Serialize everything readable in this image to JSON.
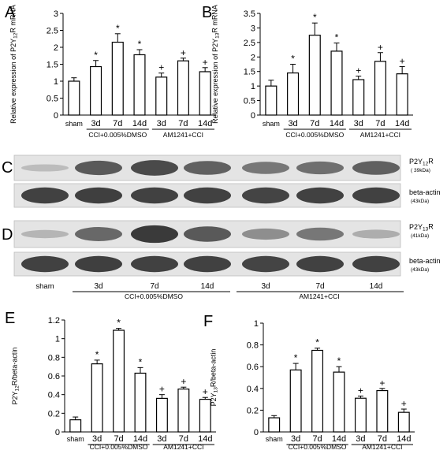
{
  "panels": [
    {
      "letter": "A",
      "ylabel": "Relative expression of P2Y12R mRNA",
      "ticks": [
        "0",
        "0.5",
        "1",
        "1.5",
        "2",
        "2.5",
        "3"
      ],
      "ymax": 3,
      "categories": [
        "sham",
        "3d",
        "7d",
        "14d",
        "3d",
        "7d",
        "14d"
      ],
      "values": [
        1.0,
        1.43,
        2.15,
        1.78,
        1.12,
        1.6,
        1.28
      ],
      "errors": [
        0.1,
        0.18,
        0.25,
        0.15,
        0.12,
        0.08,
        0.12
      ],
      "marks": [
        "",
        "*",
        "*",
        "*",
        "+",
        "+",
        "+"
      ],
      "groups": [
        "CCI+0.005%DMSO",
        "AM1241+CCI"
      ]
    },
    {
      "letter": "B",
      "ylabel": "Relative expression of P2Y13R mRNA",
      "ticks": [
        "0",
        "0.5",
        "1",
        "1.5",
        "2",
        "2.5",
        "3",
        "3.5"
      ],
      "ymax": 3.5,
      "categories": [
        "sham",
        "3d",
        "7d",
        "14d",
        "3d",
        "7d",
        "14d"
      ],
      "values": [
        1.0,
        1.45,
        2.75,
        2.2,
        1.22,
        1.85,
        1.42
      ],
      "errors": [
        0.2,
        0.3,
        0.42,
        0.28,
        0.12,
        0.3,
        0.25
      ],
      "marks": [
        "",
        "*",
        "*",
        "*",
        "+",
        "+",
        "+"
      ],
      "groups": [
        "CCI+0.005%DMSO",
        "AM1241+CCI"
      ]
    },
    {
      "letter": "E",
      "ylabel": "P2Y12R/beta-actin",
      "ticks": [
        "0",
        "0.2",
        "0.4",
        "0.6",
        "0.8",
        "1",
        "1.2"
      ],
      "ymax": 1.2,
      "categories": [
        "sham",
        "3d",
        "7d",
        "14d",
        "3d",
        "7d",
        "14d"
      ],
      "values": [
        0.13,
        0.73,
        1.09,
        0.63,
        0.36,
        0.46,
        0.35
      ],
      "errors": [
        0.03,
        0.04,
        0.02,
        0.06,
        0.04,
        0.02,
        0.02
      ],
      "marks": [
        "",
        "*",
        "*",
        "*",
        "+",
        "+",
        "+"
      ],
      "groups": [
        "CCI+0.005%DMSO",
        "AM1241+CCI"
      ]
    },
    {
      "letter": "F",
      "ylabel": "P2Y13R/beta-actin",
      "ticks": [
        "0",
        "0.2",
        "0.4",
        "0.6",
        "0.8",
        "1"
      ],
      "ymax": 1.0,
      "categories": [
        "sham",
        "3d",
        "7d",
        "14d",
        "3d",
        "7d",
        "14d"
      ],
      "values": [
        0.13,
        0.57,
        0.75,
        0.55,
        0.31,
        0.38,
        0.18
      ],
      "errors": [
        0.02,
        0.06,
        0.02,
        0.05,
        0.02,
        0.02,
        0.03
      ],
      "marks": [
        "",
        "*",
        "*",
        "*",
        "+",
        "+",
        "+"
      ],
      "groups": [
        "CCI+0.005%DMSO",
        "AM1241+CCI"
      ]
    }
  ],
  "blots": {
    "C": {
      "letter": "C",
      "target": "P2Y12R",
      "target_kda": "( 39kDa)",
      "actin": "beta-actin",
      "actin_kda": "(43kDa)",
      "intensity": [
        0.1,
        0.75,
        0.85,
        0.7,
        0.55,
        0.6,
        0.7
      ]
    },
    "D": {
      "letter": "D",
      "target": "P2Y13R",
      "target_kda": "(41kDa)",
      "actin": "beta-actin",
      "actin_kda": "(43kDa)",
      "intensity": [
        0.15,
        0.65,
        0.95,
        0.75,
        0.4,
        0.55,
        0.2
      ]
    },
    "lane_labels": [
      "sham",
      "3d",
      "7d",
      "14d",
      "3d",
      "7d",
      "14d"
    ],
    "groups": [
      "CCI+0.005%DMSO",
      "AM1241+CCI"
    ]
  }
}
